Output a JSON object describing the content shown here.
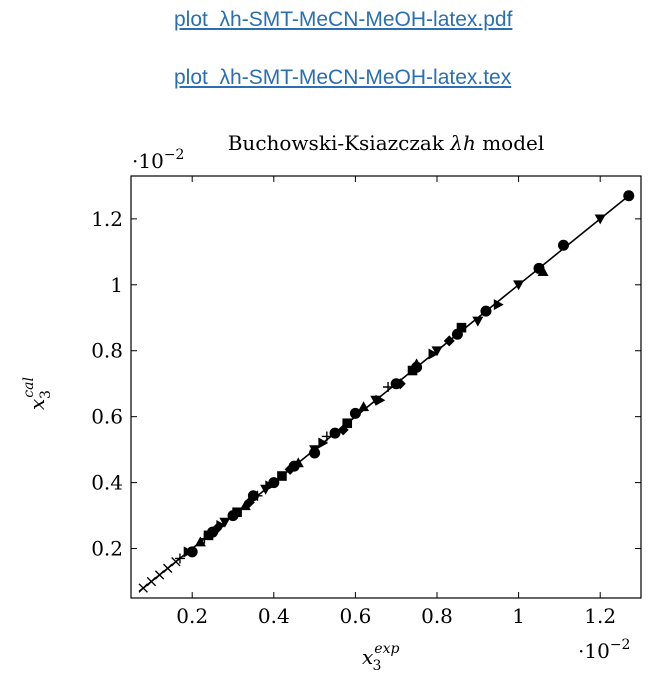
{
  "links": [
    {
      "label": "plot_λh-SMT-MeCN-MeOH-latex.pdf"
    },
    {
      "label": "plot_λh-SMT-MeCN-MeOH-latex.tex"
    }
  ],
  "colors": {
    "link": "#2a6eb4",
    "marks": "#000000"
  },
  "chart_data": {
    "type": "scatter",
    "title_prefix": "Buchowski-Ksiazczak ",
    "title_symbol": "λh",
    "title_suffix": " model",
    "xlabel": "x",
    "xlabel_sub": "3",
    "xlabel_sup": "exp",
    "ylabel": "x",
    "ylabel_sub": "3",
    "ylabel_sup": "cal",
    "x_scale_label": "·10",
    "x_scale_exp": "−2",
    "y_scale_label": "·10",
    "y_scale_exp": "−2",
    "xlim": [
      0.05,
      1.3
    ],
    "ylim": [
      0.05,
      1.33
    ],
    "xticks": [
      0.2,
      0.4,
      0.6,
      0.8,
      1,
      1.2
    ],
    "xtick_labels": [
      "0.2",
      "0.4",
      "0.6",
      "0.8",
      "1",
      "1.2"
    ],
    "yticks": [
      0.2,
      0.4,
      0.6,
      0.8,
      1,
      1.2
    ],
    "ytick_labels": [
      "0.2",
      "0.4",
      "0.6",
      "0.8",
      "1",
      "1.2"
    ],
    "grid": false,
    "line": {
      "x": [
        0.07,
        1.27
      ],
      "y": [
        0.07,
        1.27
      ]
    },
    "series": [
      {
        "marker": "circle",
        "x": [
          1.27,
          1.11,
          1.05,
          0.92,
          0.85,
          0.75,
          0.7,
          0.6,
          0.55,
          0.5,
          0.45,
          0.4,
          0.35,
          0.3,
          0.25,
          0.2
        ],
        "y": [
          1.27,
          1.12,
          1.05,
          0.92,
          0.85,
          0.75,
          0.7,
          0.61,
          0.55,
          0.49,
          0.45,
          0.4,
          0.36,
          0.3,
          0.25,
          0.19
        ]
      },
      {
        "marker": "triangle-down",
        "x": [
          1.2,
          1.0,
          0.9,
          0.8,
          0.65,
          0.5,
          0.38,
          0.28
        ],
        "y": [
          1.2,
          1.0,
          0.89,
          0.8,
          0.65,
          0.5,
          0.38,
          0.28
        ]
      },
      {
        "marker": "triangle-up",
        "x": [
          1.06,
          0.75,
          0.62,
          0.46,
          0.33,
          0.22
        ],
        "y": [
          1.04,
          0.76,
          0.63,
          0.46,
          0.33,
          0.22
        ]
      },
      {
        "marker": "square",
        "x": [
          0.86,
          0.74,
          0.58,
          0.42,
          0.31,
          0.24
        ],
        "y": [
          0.87,
          0.74,
          0.58,
          0.42,
          0.31,
          0.24
        ]
      },
      {
        "marker": "triangle-right",
        "x": [
          0.95,
          0.79,
          0.66,
          0.52,
          0.39,
          0.27,
          0.19
        ],
        "y": [
          0.94,
          0.79,
          0.65,
          0.52,
          0.39,
          0.27,
          0.19
        ]
      },
      {
        "marker": "diamond",
        "x": [
          0.83,
          0.71,
          0.57,
          0.44,
          0.34,
          0.26
        ],
        "y": [
          0.83,
          0.7,
          0.56,
          0.44,
          0.34,
          0.26
        ]
      },
      {
        "marker": "plus",
        "x": [
          0.68,
          0.53,
          0.36,
          0.23,
          0.17
        ],
        "y": [
          0.69,
          0.54,
          0.36,
          0.23,
          0.17
        ]
      },
      {
        "marker": "cross",
        "x": [
          0.08,
          0.1,
          0.12,
          0.14,
          0.16
        ],
        "y": [
          0.08,
          0.1,
          0.12,
          0.14,
          0.16
        ]
      }
    ]
  }
}
